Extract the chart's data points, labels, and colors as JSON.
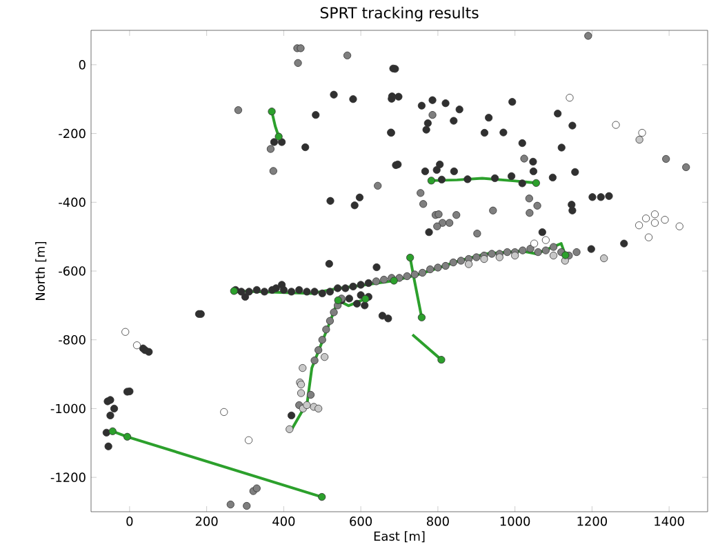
{
  "chart_data": {
    "type": "scatter",
    "title": "SPRT tracking results",
    "xlabel": "East [m]",
    "ylabel": "North [m]",
    "xlim": [
      -100,
      1500
    ],
    "ylim": [
      -1300,
      100
    ],
    "xticks": [
      0,
      200,
      400,
      600,
      800,
      1000,
      1200,
      1400
    ],
    "yticks": [
      -1200,
      -1000,
      -800,
      -600,
      -400,
      -200,
      0
    ],
    "marker": "circle",
    "series": [
      {
        "color": "#303030",
        "x": [
          -60,
          -55,
          -50,
          -40,
          -50,
          0,
          40,
          35,
          50,
          180,
          185,
          375,
          395,
          456,
          483,
          530,
          580,
          521,
          584,
          597,
          678,
          684,
          691,
          681,
          518,
          641,
          656,
          671,
          -6,
          -57,
          689,
          680,
          698,
          679,
          696,
          758,
          786,
          820,
          856,
          774,
          770,
          841,
          993,
          932,
          921,
          970,
          1019,
          1047,
          1048,
          1111,
          1149,
          1121,
          1156,
          1098,
          767,
          805,
          797,
          810,
          842,
          877,
          948,
          991,
          1019,
          777,
          1147,
          1149,
          1201,
          1223,
          1244,
          1071,
          1198,
          1283,
          275,
          290,
          300,
          310,
          330,
          350,
          370,
          380,
          395,
          400,
          420,
          440,
          460,
          480,
          500,
          520,
          540,
          560,
          580,
          600,
          620,
          550,
          570,
          590,
          610,
          620,
          600,
          420
        ],
        "values": [
          -1070,
          -1110,
          -1020,
          -1000,
          -975,
          -950,
          -830,
          -825,
          -835,
          -725,
          -725,
          -225,
          -225,
          -240,
          -146,
          -87,
          -100,
          -396,
          -409,
          -386,
          -197,
          -11,
          -292,
          -92,
          -579,
          -589,
          -730,
          -738,
          -951,
          -979,
          -12,
          -99,
          -93,
          -198,
          -290,
          -119,
          -103,
          -112,
          -130,
          -170,
          -189,
          -163,
          -108,
          -154,
          -198,
          -197,
          -228,
          -282,
          -310,
          -142,
          -177,
          -241,
          -312,
          -328,
          -310,
          -290,
          -306,
          -334,
          -310,
          -333,
          -330,
          -324,
          -345,
          -487,
          -407,
          -424,
          -385,
          -385,
          -382,
          -487,
          -536,
          -520,
          -655,
          -660,
          -675,
          -660,
          -655,
          -660,
          -655,
          -650,
          -640,
          -655,
          -660,
          -655,
          -660,
          -660,
          -665,
          -660,
          -650,
          -650,
          -645,
          -640,
          -635,
          -685,
          -680,
          -695,
          -700,
          -675,
          -670,
          -1020
        ]
      },
      {
        "color": "#7f7f7f",
        "x": [
          282,
          366,
          373,
          435,
          444,
          437,
          565,
          644,
          262,
          304,
          321,
          330,
          786,
          1024,
          755,
          762,
          794,
          802,
          848,
          812,
          830,
          798,
          902,
          943,
          1037,
          1058,
          1038,
          1392,
          1444,
          1190,
          640,
          660,
          680,
          700,
          720,
          740,
          760,
          780,
          800,
          820,
          840,
          860,
          880,
          900,
          920,
          940,
          960,
          980,
          1000,
          1020,
          1040,
          1060,
          1080,
          1100,
          1120,
          1140,
          1160,
          440,
          470,
          480,
          490,
          500,
          510,
          520,
          530,
          540,
          550
        ],
        "values": [
          -132,
          -245,
          -309,
          48,
          48,
          5,
          27,
          -352,
          -1279,
          -1283,
          -1240,
          -1232,
          -146,
          -273,
          -373,
          -405,
          -437,
          -435,
          -437,
          -460,
          -460,
          -470,
          -491,
          -424,
          -389,
          -410,
          -431,
          -274,
          -298,
          84,
          -630,
          -625,
          -620,
          -620,
          -615,
          -610,
          -605,
          -595,
          -590,
          -585,
          -575,
          -570,
          -565,
          -560,
          -555,
          -550,
          -550,
          -545,
          -545,
          -540,
          -535,
          -545,
          -540,
          -530,
          -545,
          -555,
          -545,
          -990,
          -960,
          -860,
          -830,
          -800,
          -770,
          -745,
          -720,
          -700,
          -680
        ]
      },
      {
        "color": "#c8c8c8",
        "x": [
          449,
          442,
          478,
          506,
          880,
          920,
          960,
          1000,
          1100,
          1130,
          1231,
          1323,
          415,
          450,
          445,
          460,
          490,
          445
        ],
        "values": [
          -882,
          -924,
          -995,
          -850,
          -580,
          -565,
          -560,
          -555,
          -555,
          -570,
          -563,
          -218,
          -1060,
          -1000,
          -955,
          -990,
          -1000,
          -930
        ]
      },
      {
        "color": "#ffffff",
        "x": [
          -11,
          19,
          245,
          309,
          1142,
          1262,
          1330,
          1322,
          1340,
          1363,
          1363,
          1389,
          1427,
          1347,
          1050,
          1080
        ],
        "values": [
          -777,
          -816,
          -1010,
          -1092,
          -96,
          -175,
          -198,
          -467,
          -447,
          -435,
          -460,
          -451,
          -470,
          -502,
          -520,
          -510
        ]
      },
      {
        "type": "line",
        "marker": "none",
        "color": "#2ca02c",
        "x": [
          -44,
          -6,
          499
        ],
        "values": [
          -1066,
          -1082,
          -1257
        ]
      },
      {
        "type": "line",
        "marker": "none",
        "color": "#2ca02c",
        "x": [
          271,
          340,
          473,
          533,
          612,
          686,
          746,
          793,
          853,
          924,
          1019,
          1055,
          1120,
          1131
        ],
        "values": [
          -658,
          -660,
          -665,
          -652,
          -640,
          -628,
          -611,
          -594,
          -571,
          -550,
          -542,
          -550,
          -520,
          -554
        ]
      },
      {
        "type": "line",
        "marker": "none",
        "color": "#2ca02c",
        "x": [
          421,
          461,
          473,
          520,
          541,
          568,
          592,
          612
        ],
        "values": [
          -1060,
          -982,
          -882,
          -748,
          -685,
          -701,
          -690,
          -681
        ]
      },
      {
        "type": "line",
        "marker": "none",
        "color": "#2ca02c",
        "x": [
          728,
          736,
          758
        ],
        "values": [
          -561,
          -610,
          -735
        ]
      },
      {
        "type": "line",
        "marker": "none",
        "color": "#2ca02c",
        "x": [
          734,
          809
        ],
        "values": [
          -785,
          -858
        ]
      },
      {
        "type": "line",
        "marker": "none",
        "color": "#2ca02c",
        "x": [
          783,
          850,
          915,
          1000,
          1055
        ],
        "values": [
          -337,
          -335,
          -330,
          -338,
          -344
        ]
      },
      {
        "color": "#2ca02c",
        "x": [
          -44,
          -6,
          499,
          369,
          387,
          271,
          686,
          1131,
          541,
          612,
          728,
          758,
          809,
          783,
          1055
        ],
        "values": [
          -1066,
          -1082,
          -1257,
          -136,
          -209,
          -658,
          -628,
          -554,
          -685,
          -681,
          -561,
          -735,
          -858,
          -337,
          -344
        ]
      },
      {
        "type": "line",
        "marker": "none",
        "color": "#2ca02c",
        "x": [
          369,
          378,
          387
        ],
        "values": [
          -136,
          -179,
          -209
        ]
      }
    ]
  }
}
